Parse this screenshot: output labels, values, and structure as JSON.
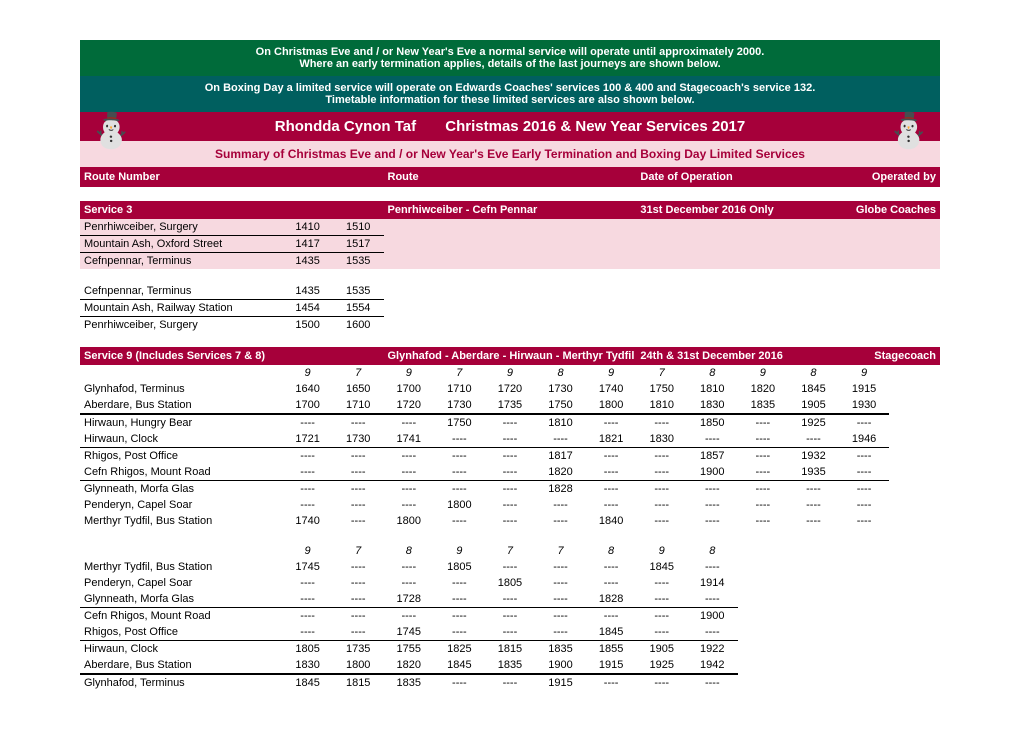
{
  "colors": {
    "green": "#006b3a",
    "teal": "#005f5f",
    "maroon": "#a6003a",
    "pink": "#f7d9e0",
    "white": "#ffffff",
    "black": "#000000"
  },
  "notices": {
    "line1": "On Christmas Eve and / or New Year's Eve a normal service will operate until approximately 2000.",
    "line2": "Where an early termination applies, details of the last journeys are shown below.",
    "line3": "On Boxing Day a limited service will operate on Edwards Coaches' services 100 & 400 and Stagecoach's service 132.",
    "line4": "Timetable information for these limited services are also shown below."
  },
  "title": "Rhondda Cynon Taf       Christmas 2016 & New Year Services 2017",
  "subtitle": "Summary of Christmas Eve and / or New Year's Eve Early Termination and Boxing Day Limited Services",
  "columns": {
    "route_number": "Route Number",
    "route": "Route",
    "date": "Date of Operation",
    "operator": "Operated by"
  },
  "service3": {
    "name": "Service 3",
    "route": "Penrhiwceiber - Cefn Pennar",
    "date": "31st December 2016 Only",
    "operator": "Globe Coaches",
    "out": [
      {
        "stop": "Penrhiwceiber, Surgery",
        "times": [
          "1410",
          "1510"
        ],
        "pink": true,
        "bb": true
      },
      {
        "stop": "Mountain Ash, Oxford Street",
        "times": [
          "1417",
          "1517"
        ],
        "pink": true,
        "bb": true
      },
      {
        "stop": "Cefnpennar, Terminus",
        "times": [
          "1435",
          "1535"
        ],
        "pink": true,
        "bb": false
      }
    ],
    "ret": [
      {
        "stop": "Cefnpennar, Terminus",
        "times": [
          "1435",
          "1535"
        ],
        "pink": false,
        "bb": true
      },
      {
        "stop": "Mountain Ash, Railway Station",
        "times": [
          "1454",
          "1554"
        ],
        "pink": false,
        "bb": true
      },
      {
        "stop": "Penrhiwceiber, Surgery",
        "times": [
          "1500",
          "1600"
        ],
        "pink": false,
        "bb": false
      }
    ]
  },
  "service9": {
    "name": "Service 9 (Includes Services 7 & 8)",
    "route": "Glynhafod - Aberdare - Hirwaun - Merthyr Tydfil",
    "date": "24th & 31st December 2016",
    "operator": "Stagecoach",
    "out_header": [
      "9",
      "7",
      "9",
      "7",
      "9",
      "8",
      "9",
      "7",
      "8",
      "9",
      "8",
      "9"
    ],
    "out": [
      {
        "stop": "Glynhafod, Terminus",
        "times": [
          "1640",
          "1650",
          "1700",
          "1710",
          "1720",
          "1730",
          "1740",
          "1750",
          "1810",
          "1820",
          "1845",
          "1915"
        ],
        "bb": false
      },
      {
        "stop": "Aberdare, Bus Station",
        "times": [
          "1700",
          "1710",
          "1720",
          "1730",
          "1735",
          "1750",
          "1800",
          "1810",
          "1830",
          "1835",
          "1905",
          "1930"
        ],
        "bb": false,
        "bbthick": true
      },
      {
        "stop": "Hirwaun, Hungry Bear",
        "times": [
          "----",
          "----",
          "----",
          "1750",
          "----",
          "1810",
          "----",
          "----",
          "1850",
          "----",
          "1925",
          "----"
        ],
        "bb": false
      },
      {
        "stop": "Hirwaun, Clock",
        "times": [
          "1721",
          "1730",
          "1741",
          "----",
          "----",
          "----",
          "1821",
          "1830",
          "----",
          "----",
          "----",
          "1946"
        ],
        "bb": true
      },
      {
        "stop": "Rhigos, Post Office",
        "times": [
          "----",
          "----",
          "----",
          "----",
          "----",
          "1817",
          "----",
          "----",
          "1857",
          "----",
          "1932",
          "----"
        ],
        "bb": false
      },
      {
        "stop": "Cefn Rhigos, Mount Road",
        "times": [
          "----",
          "----",
          "----",
          "----",
          "----",
          "1820",
          "----",
          "----",
          "1900",
          "----",
          "1935",
          "----"
        ],
        "bb": true
      },
      {
        "stop": "Glynneath, Morfa Glas",
        "times": [
          "----",
          "----",
          "----",
          "----",
          "----",
          "1828",
          "----",
          "----",
          "----",
          "----",
          "----",
          "----"
        ],
        "bb": false
      },
      {
        "stop": "Penderyn, Capel Soar",
        "times": [
          "----",
          "----",
          "----",
          "1800",
          "----",
          "----",
          "----",
          "----",
          "----",
          "----",
          "----",
          "----"
        ],
        "bb": false
      },
      {
        "stop": "Merthyr Tydfil, Bus Station",
        "times": [
          "1740",
          "----",
          "1800",
          "----",
          "----",
          "----",
          "1840",
          "----",
          "----",
          "----",
          "----",
          "----"
        ],
        "bb": false
      }
    ],
    "ret_header": [
      "9",
      "7",
      "8",
      "9",
      "7",
      "7",
      "8",
      "9",
      "8"
    ],
    "ret": [
      {
        "stop": "Merthyr Tydfil, Bus Station",
        "times": [
          "1745",
          "----",
          "----",
          "1805",
          "----",
          "----",
          "----",
          "1845",
          "----"
        ],
        "bb": false
      },
      {
        "stop": "Penderyn, Capel Soar",
        "times": [
          "----",
          "----",
          "----",
          "----",
          "1805",
          "----",
          "----",
          "----",
          "1914"
        ],
        "bb": false
      },
      {
        "stop": "Glynneath, Morfa Glas",
        "times": [
          "----",
          "----",
          "1728",
          "----",
          "----",
          "----",
          "1828",
          "----",
          "----"
        ],
        "bb": true
      },
      {
        "stop": "Cefn Rhigos, Mount Road",
        "times": [
          "----",
          "----",
          "----",
          "----",
          "----",
          "----",
          "----",
          "----",
          "1900"
        ],
        "bb": false
      },
      {
        "stop": "Rhigos, Post Office",
        "times": [
          "----",
          "----",
          "1745",
          "----",
          "----",
          "----",
          "1845",
          "----",
          "----"
        ],
        "bb": true
      },
      {
        "stop": "Hirwaun, Clock",
        "times": [
          "1805",
          "1735",
          "1755",
          "1825",
          "1815",
          "1835",
          "1855",
          "1905",
          "1922"
        ],
        "bb": false
      },
      {
        "stop": "Aberdare, Bus Station",
        "times": [
          "1830",
          "1800",
          "1820",
          "1845",
          "1835",
          "1900",
          "1915",
          "1925",
          "1942"
        ],
        "bb": false,
        "bbthick": true
      },
      {
        "stop": "Glynhafod, Terminus",
        "times": [
          "1845",
          "1815",
          "1835",
          "----",
          "----",
          "1915",
          "----",
          "----",
          "----"
        ],
        "bb": false
      }
    ]
  }
}
